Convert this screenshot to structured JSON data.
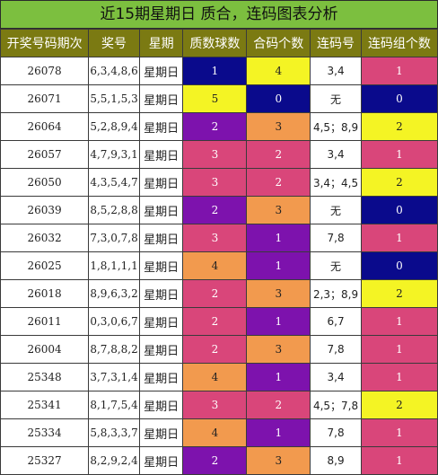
{
  "title": "近15期星期日 质合，连码图表分析",
  "headers": [
    "开奖号码期次",
    "奖号",
    "星期",
    "质数球数",
    "合码个数",
    "连码号",
    "连码组个数"
  ],
  "colors": {
    "1": {
      "bg": "#0a0a8c",
      "fg": "#ffffff"
    },
    "2": {
      "bg": "#7d12ad",
      "fg": "#ffffff"
    },
    "3": {
      "bg": "#f29a4e",
      "fg": "#222222"
    },
    "4": {
      "bg": "#f4f424",
      "fg": "#222222"
    },
    "5": {
      "bg": "#d9467a",
      "fg": "#ffffff"
    }
  },
  "rows": [
    {
      "issue": "26078",
      "nums": "6,3,4,8,6",
      "week": "星期日",
      "prime": "1",
      "prime_c": "1",
      "comp": "4",
      "comp_c": "4",
      "lian": "3,4",
      "grp": "1",
      "grp_c": "5"
    },
    {
      "issue": "26071",
      "nums": "5,5,1,5,3",
      "week": "星期日",
      "prime": "5",
      "prime_c": "4",
      "comp": "0",
      "comp_c": "1",
      "lian": "无",
      "grp": "0",
      "grp_c": "1"
    },
    {
      "issue": "26064",
      "nums": "5,2,8,9,4",
      "week": "星期日",
      "prime": "2",
      "prime_c": "2",
      "comp": "3",
      "comp_c": "3",
      "lian": "4,5；8,9",
      "grp": "2",
      "grp_c": "4"
    },
    {
      "issue": "26057",
      "nums": "4,7,9,3,1",
      "week": "星期日",
      "prime": "3",
      "prime_c": "5",
      "comp": "2",
      "comp_c": "5",
      "lian": "3,4",
      "grp": "1",
      "grp_c": "5"
    },
    {
      "issue": "26050",
      "nums": "4,3,5,4,7",
      "week": "星期日",
      "prime": "3",
      "prime_c": "5",
      "comp": "2",
      "comp_c": "5",
      "lian": "3,4；4,5",
      "grp": "2",
      "grp_c": "4"
    },
    {
      "issue": "26039",
      "nums": "8,5,2,8,8",
      "week": "星期日",
      "prime": "2",
      "prime_c": "2",
      "comp": "3",
      "comp_c": "3",
      "lian": "无",
      "grp": "0",
      "grp_c": "1"
    },
    {
      "issue": "26032",
      "nums": "7,3,0,7,8",
      "week": "星期日",
      "prime": "3",
      "prime_c": "5",
      "comp": "1",
      "comp_c": "2",
      "lian": "7,8",
      "grp": "1",
      "grp_c": "5"
    },
    {
      "issue": "26025",
      "nums": "1,8,1,1,1",
      "week": "星期日",
      "prime": "4",
      "prime_c": "3",
      "comp": "1",
      "comp_c": "2",
      "lian": "无",
      "grp": "0",
      "grp_c": "1"
    },
    {
      "issue": "26018",
      "nums": "8,9,6,3,2",
      "week": "星期日",
      "prime": "2",
      "prime_c": "5",
      "comp": "3",
      "comp_c": "3",
      "lian": "2,3；8,9",
      "grp": "2",
      "grp_c": "4"
    },
    {
      "issue": "26011",
      "nums": "0,3,0,6,7",
      "week": "星期日",
      "prime": "2",
      "prime_c": "5",
      "comp": "1",
      "comp_c": "2",
      "lian": "6,7",
      "grp": "1",
      "grp_c": "5"
    },
    {
      "issue": "26004",
      "nums": "8,7,8,8,2",
      "week": "星期日",
      "prime": "2",
      "prime_c": "5",
      "comp": "3",
      "comp_c": "3",
      "lian": "7,8",
      "grp": "1",
      "grp_c": "5"
    },
    {
      "issue": "25348",
      "nums": "3,7,3,1,4",
      "week": "星期日",
      "prime": "4",
      "prime_c": "3",
      "comp": "1",
      "comp_c": "2",
      "lian": "3,4",
      "grp": "1",
      "grp_c": "5"
    },
    {
      "issue": "25341",
      "nums": "8,1,7,5,4",
      "week": "星期日",
      "prime": "3",
      "prime_c": "5",
      "comp": "2",
      "comp_c": "5",
      "lian": "4,5；7,8",
      "grp": "2",
      "grp_c": "4"
    },
    {
      "issue": "25334",
      "nums": "5,8,3,3,7",
      "week": "星期日",
      "prime": "4",
      "prime_c": "3",
      "comp": "1",
      "comp_c": "2",
      "lian": "7,8",
      "grp": "1",
      "grp_c": "5"
    },
    {
      "issue": "25327",
      "nums": "8,2,9,2,4",
      "week": "星期日",
      "prime": "2",
      "prime_c": "2",
      "comp": "3",
      "comp_c": "3",
      "lian": "8,9",
      "grp": "1",
      "grp_c": "5"
    }
  ]
}
